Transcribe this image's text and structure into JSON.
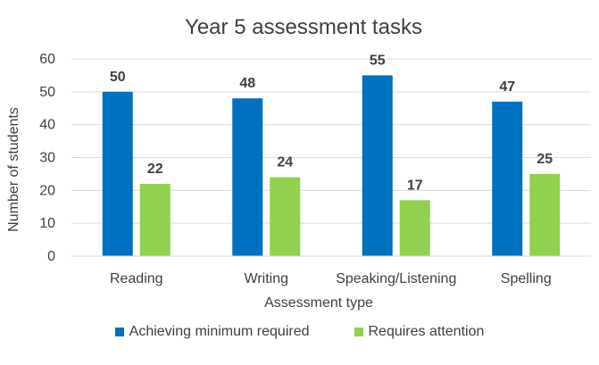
{
  "chart_data": {
    "type": "bar",
    "title": "Year 5 assessment tasks",
    "xlabel": "Assessment type",
    "ylabel": "Number of students",
    "categories": [
      "Reading",
      "Writing",
      "Speaking/Listening",
      "Spelling"
    ],
    "series": [
      {
        "name": "Achieving minimum required",
        "values": [
          50,
          48,
          55,
          47
        ],
        "color": "#0070C0"
      },
      {
        "name": "Requires attention",
        "values": [
          22,
          24,
          17,
          25
        ],
        "color": "#92D050"
      }
    ],
    "ylim": [
      0,
      60
    ],
    "yticks": [
      0,
      10,
      20,
      30,
      40,
      50,
      60
    ],
    "grid": true,
    "legend": "bottom",
    "data_labels": true
  }
}
